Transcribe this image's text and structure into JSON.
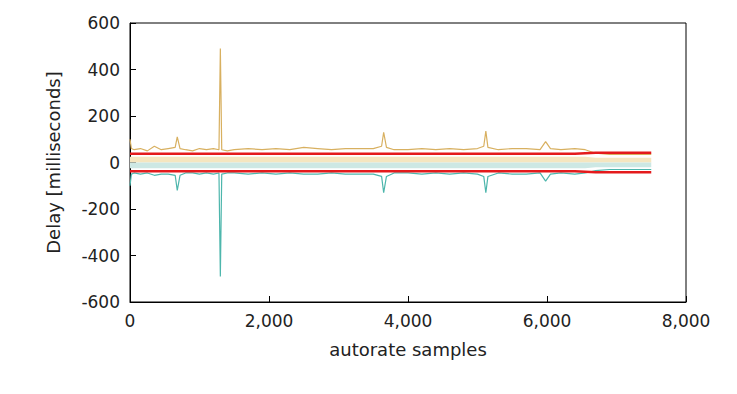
{
  "chart_data": {
    "type": "line",
    "x_label": "autorate samples",
    "y_label": "Delay [milliseconds]",
    "xlim": [
      0,
      8000
    ],
    "xticks": [
      0,
      2000,
      4000,
      6000,
      8000
    ],
    "ylim": [
      -600,
      600
    ],
    "yticks": [
      -600,
      -400,
      -200,
      0,
      200,
      400,
      600
    ],
    "grid": false,
    "x": [
      0,
      20,
      60,
      150,
      250,
      350,
      450,
      550,
      650,
      680,
      720,
      800,
      900,
      1000,
      1100,
      1200,
      1280,
      1300,
      1320,
      1400,
      1500,
      1700,
      1900,
      2100,
      2300,
      2500,
      2700,
      2900,
      3100,
      3300,
      3500,
      3620,
      3650,
      3690,
      3800,
      4000,
      4200,
      4400,
      4600,
      4800,
      5000,
      5090,
      5120,
      5150,
      5300,
      5500,
      5700,
      5900,
      5980,
      6050,
      6200,
      6400,
      6550,
      6700,
      6900,
      7100,
      7300,
      7500
    ],
    "series": [
      {
        "type": "area",
        "color": "#f5e6c0",
        "values": [
          25,
          25,
          25,
          25,
          25,
          25,
          25,
          25,
          25,
          25,
          25,
          25,
          25,
          25,
          25,
          25,
          25,
          25,
          25,
          25,
          25,
          25,
          25,
          25,
          25,
          25,
          25,
          25,
          25,
          25,
          25,
          25,
          25,
          25,
          25,
          25,
          25,
          25,
          25,
          25,
          25,
          25,
          25,
          25,
          25,
          25,
          25,
          25,
          25,
          25,
          25,
          25,
          25,
          20,
          20,
          20,
          20,
          20
        ]
      },
      {
        "type": "area",
        "color": "#cde8e4",
        "values": [
          -25,
          -25,
          -25,
          -25,
          -25,
          -25,
          -25,
          -25,
          -25,
          -25,
          -25,
          -25,
          -25,
          -25,
          -25,
          -25,
          -25,
          -25,
          -25,
          -25,
          -25,
          -25,
          -25,
          -25,
          -25,
          -25,
          -25,
          -25,
          -25,
          -25,
          -25,
          -25,
          -25,
          -25,
          -25,
          -25,
          -25,
          -25,
          -25,
          -25,
          -25,
          -25,
          -25,
          -25,
          -25,
          -25,
          -25,
          -25,
          -25,
          -25,
          -25,
          -25,
          -25,
          -20,
          -20,
          -20,
          -20,
          -20
        ]
      },
      {
        "type": "line",
        "color": "#d8b060",
        "values": [
          100,
          60,
          55,
          60,
          50,
          70,
          55,
          60,
          65,
          110,
          60,
          55,
          50,
          60,
          55,
          60,
          55,
          490,
          55,
          50,
          55,
          60,
          55,
          60,
          55,
          65,
          60,
          55,
          60,
          60,
          60,
          70,
          130,
          65,
          55,
          55,
          60,
          55,
          60,
          55,
          60,
          70,
          135,
          65,
          55,
          60,
          60,
          55,
          90,
          60,
          55,
          60,
          55,
          40,
          35,
          35,
          35,
          35
        ]
      },
      {
        "type": "line",
        "color": "#4db6ac",
        "values": [
          -100,
          -50,
          -45,
          -50,
          -45,
          -55,
          -50,
          -50,
          -55,
          -120,
          -55,
          -45,
          -45,
          -50,
          -45,
          -50,
          -45,
          -490,
          -50,
          -45,
          -45,
          -50,
          -45,
          -50,
          -45,
          -50,
          -50,
          -45,
          -50,
          -50,
          -50,
          -60,
          -130,
          -60,
          -45,
          -45,
          -50,
          -45,
          -50,
          -45,
          -50,
          -60,
          -130,
          -60,
          -45,
          -50,
          -50,
          -45,
          -80,
          -50,
          -45,
          -50,
          -45,
          -35,
          -30,
          -30,
          -30,
          -30
        ]
      },
      {
        "type": "line",
        "color": "#e41a1c",
        "values": [
          38,
          38,
          38,
          38,
          38,
          38,
          38,
          38,
          38,
          38,
          38,
          38,
          38,
          38,
          38,
          38,
          38,
          38,
          38,
          38,
          38,
          38,
          38,
          38,
          38,
          38,
          38,
          38,
          38,
          38,
          38,
          38,
          38,
          38,
          38,
          38,
          38,
          38,
          38,
          38,
          38,
          38,
          38,
          38,
          38,
          38,
          38,
          38,
          38,
          38,
          38,
          38,
          40,
          42,
          42,
          42,
          42,
          42
        ]
      },
      {
        "type": "line",
        "color": "#e41a1c",
        "values": [
          -38,
          -38,
          -38,
          -38,
          -38,
          -38,
          -38,
          -38,
          -38,
          -38,
          -38,
          -38,
          -38,
          -38,
          -38,
          -38,
          -38,
          -38,
          -38,
          -38,
          -38,
          -38,
          -38,
          -38,
          -38,
          -38,
          -38,
          -38,
          -38,
          -38,
          -38,
          -38,
          -38,
          -38,
          -38,
          -38,
          -38,
          -38,
          -38,
          -38,
          -38,
          -38,
          -38,
          -38,
          -38,
          -38,
          -38,
          -38,
          -38,
          -38,
          -38,
          -38,
          -40,
          -42,
          -42,
          -42,
          -42,
          -42
        ]
      }
    ]
  }
}
